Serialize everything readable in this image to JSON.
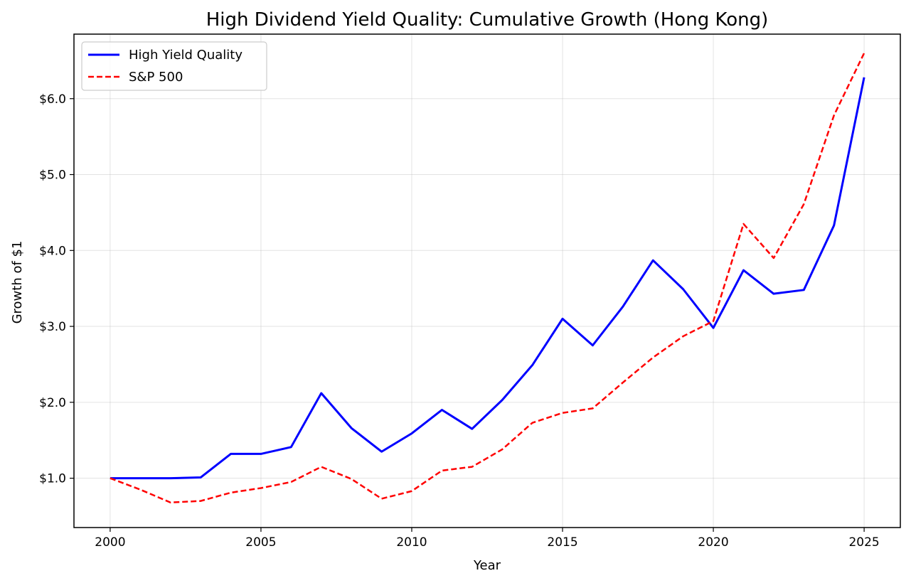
{
  "chart_data": {
    "type": "line",
    "title": "High Dividend Yield Quality: Cumulative Growth (Hong Kong)",
    "xlabel": "Year",
    "ylabel": "Growth of $1",
    "xlim": [
      1998.8,
      2026.2
    ],
    "ylim": [
      0.35,
      6.85
    ],
    "x_ticks": [
      2000,
      2005,
      2010,
      2015,
      2020,
      2025
    ],
    "y_ticks": [
      1.0,
      2.0,
      3.0,
      4.0,
      5.0,
      6.0
    ],
    "y_tick_labels": [
      "$1.0",
      "$2.0",
      "$3.0",
      "$4.0",
      "$5.0",
      "$6.0"
    ],
    "grid": true,
    "legend_position": "top-left",
    "x": [
      2000,
      2001,
      2002,
      2003,
      2004,
      2005,
      2006,
      2007,
      2008,
      2009,
      2010,
      2011,
      2012,
      2013,
      2014,
      2015,
      2016,
      2017,
      2018,
      2019,
      2020,
      2021,
      2022,
      2023,
      2024,
      2025
    ],
    "series": [
      {
        "name": "High Yield Quality",
        "color": "#0000ff",
        "style": "solid",
        "values": [
          1.0,
          1.0,
          1.0,
          1.01,
          1.32,
          1.32,
          1.41,
          2.12,
          1.66,
          1.35,
          1.59,
          1.9,
          1.65,
          2.03,
          2.49,
          3.1,
          2.75,
          3.26,
          3.87,
          3.49,
          2.98,
          3.74,
          3.43,
          3.48,
          4.33,
          6.28
        ]
      },
      {
        "name": "S&P 500",
        "color": "#ff0000",
        "style": "dashed",
        "values": [
          1.0,
          0.85,
          0.68,
          0.7,
          0.81,
          0.87,
          0.95,
          1.15,
          0.99,
          0.73,
          0.83,
          1.1,
          1.15,
          1.38,
          1.73,
          1.86,
          1.92,
          2.26,
          2.59,
          2.87,
          3.07,
          4.35,
          3.9,
          4.61,
          5.78,
          6.6
        ]
      }
    ]
  }
}
